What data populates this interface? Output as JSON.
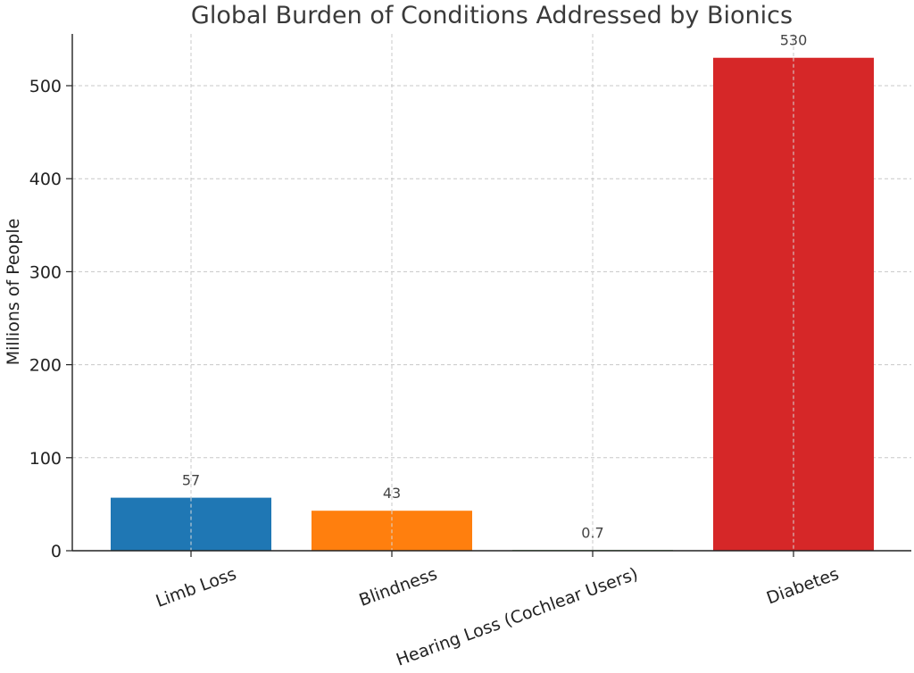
{
  "chart_data": {
    "type": "bar",
    "title": "Global Burden of Conditions Addressed by Bionics",
    "xlabel": "",
    "ylabel": "Millions of People",
    "categories": [
      "Limb Loss",
      "Blindness",
      "Hearing Loss (Cochlear Users)",
      "Diabetes"
    ],
    "values": [
      57,
      43,
      0.7,
      530
    ],
    "value_labels": [
      "57",
      "43",
      "0.7",
      "530"
    ],
    "colors": [
      "#1f77b4",
      "#ff7f0e",
      "#2ca02c",
      "#d62728"
    ],
    "ylim": [
      0,
      550
    ],
    "yticks": [
      0,
      100,
      200,
      300,
      400,
      500
    ],
    "grid": true,
    "legend": "none"
  }
}
